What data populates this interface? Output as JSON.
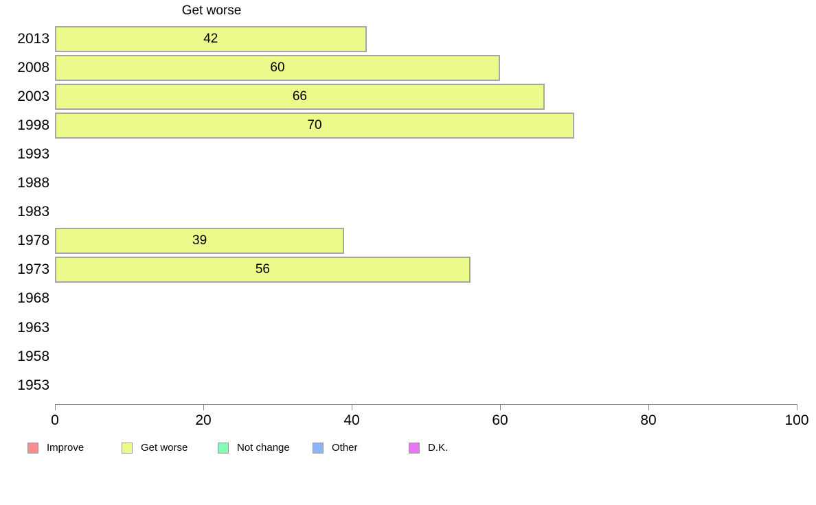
{
  "chart_data": {
    "type": "bar",
    "orientation": "horizontal",
    "title": "Get worse",
    "categories": [
      "2013",
      "2008",
      "2003",
      "1998",
      "1993",
      "1988",
      "1983",
      "1978",
      "1973",
      "1968",
      "1963",
      "1958",
      "1953"
    ],
    "values": [
      42,
      60,
      66,
      70,
      null,
      null,
      null,
      39,
      56,
      null,
      null,
      null,
      null
    ],
    "xlabel": "",
    "ylabel": "",
    "xlim": [
      0,
      100
    ],
    "x_ticks": [
      0,
      20,
      40,
      60,
      80,
      100
    ],
    "grid": false,
    "bar_fill_color": "#ecfa8c",
    "bar_border_color": "#a6a6a6",
    "axis_color": "#888888",
    "legend_position": "bottom",
    "legend": [
      {
        "label": "Improve",
        "color": "#f98c8c"
      },
      {
        "label": "Get worse",
        "color": "#ecfa8c"
      },
      {
        "label": "Not change",
        "color": "#84fcb6"
      },
      {
        "label": "Other",
        "color": "#8cb2f7"
      },
      {
        "label": "D.K.",
        "color": "#eb74f4"
      }
    ]
  }
}
